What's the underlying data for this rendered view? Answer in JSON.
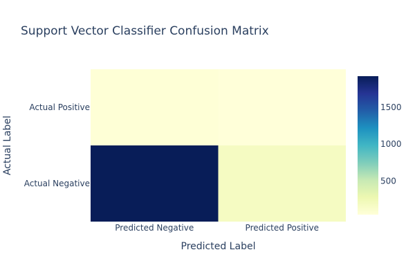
{
  "chart_data": {
    "type": "heatmap",
    "title": "Support Vector Classifier Confusion Matrix",
    "xlabel": "Predicted Label",
    "ylabel": "Actual Label",
    "x_categories": [
      "Predicted Negative",
      "Predicted Positive"
    ],
    "y_categories": [
      "Actual Negative",
      "Actual Positive"
    ],
    "z": [
      [
        1920,
        180
      ],
      [
        60,
        45
      ]
    ],
    "colorscale": "YlGnBu",
    "colorbar": {
      "tickvals": [
        500,
        1000,
        1500
      ],
      "ticktext": [
        "500",
        "1000",
        "1500"
      ],
      "zmin": 45,
      "zmax": 1920
    }
  }
}
